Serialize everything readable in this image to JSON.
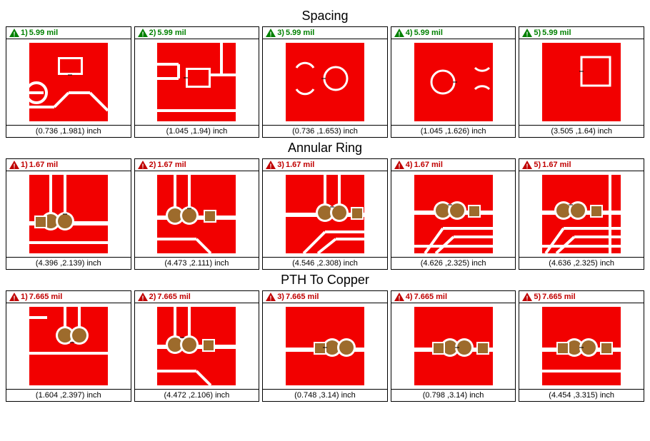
{
  "sections": [
    {
      "title": "Spacing",
      "icon_color": "#008000",
      "label_color": "green",
      "items": [
        {
          "idx": "1)",
          "value": "5.99 mil",
          "coord": "(0.736 ,1.981) inch",
          "glyph": "s1"
        },
        {
          "idx": "2)",
          "value": "5.99 mil",
          "coord": "(1.045 ,1.94) inch",
          "glyph": "s2"
        },
        {
          "idx": "3)",
          "value": "5.99 mil",
          "coord": "(0.736 ,1.653) inch",
          "glyph": "s3"
        },
        {
          "idx": "4)",
          "value": "5.99 mil",
          "coord": "(1.045 ,1.626) inch",
          "glyph": "s4"
        },
        {
          "idx": "5)",
          "value": "5.99 mil",
          "coord": "(3.505 ,1.64) inch",
          "glyph": "s5"
        }
      ]
    },
    {
      "title": "Annular Ring",
      "icon_color": "#c00000",
      "label_color": "red",
      "items": [
        {
          "idx": "1)",
          "value": "1.67 mil",
          "coord": "(4.396 ,2.139) inch",
          "glyph": "a1"
        },
        {
          "idx": "2)",
          "value": "1.67 mil",
          "coord": "(4.473 ,2.111) inch",
          "glyph": "a2"
        },
        {
          "idx": "3)",
          "value": "1.67 mil",
          "coord": "(4.546 ,2.308) inch",
          "glyph": "a3"
        },
        {
          "idx": "4)",
          "value": "1.67 mil",
          "coord": "(4.626 ,2.325) inch",
          "glyph": "a4"
        },
        {
          "idx": "5)",
          "value": "1.67 mil",
          "coord": "(4.636 ,2.325) inch",
          "glyph": "a5"
        }
      ]
    },
    {
      "title": "PTH To Copper",
      "icon_color": "#c00000",
      "label_color": "red",
      "items": [
        {
          "idx": "1)",
          "value": "7.665 mil",
          "coord": "(1.604 ,2.397) inch",
          "glyph": "p1"
        },
        {
          "idx": "2)",
          "value": "7.665 mil",
          "coord": "(4.472 ,2.106) inch",
          "glyph": "p2"
        },
        {
          "idx": "3)",
          "value": "7.665 mil",
          "coord": "(0.748 ,3.14) inch",
          "glyph": "p3"
        },
        {
          "idx": "4)",
          "value": "7.665 mil",
          "coord": "(0.798 ,3.14) inch",
          "glyph": "p4"
        },
        {
          "idx": "5)",
          "value": "7.665 mil",
          "coord": "(4.454 ,3.315) inch",
          "glyph": "p5"
        }
      ]
    }
  ],
  "style": {
    "pcb_red": "#f20000",
    "pcb_brown": "#9d6b2c",
    "pcb_white": "#ffffff",
    "tile_size": 120,
    "inner_size": 110,
    "trace_w": 4,
    "title_fontsize": 18,
    "label_fontsize": 11
  }
}
